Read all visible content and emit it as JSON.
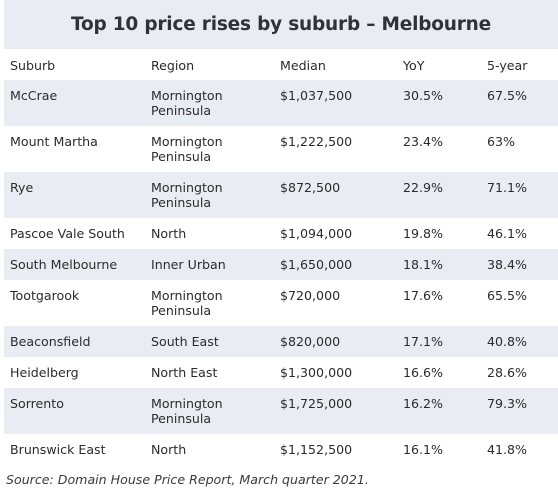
{
  "title": "Top 10 price rises by suburb – Melbourne",
  "columns": [
    "Suburb",
    "Region",
    "Median",
    "YoY",
    "5-year"
  ],
  "rows": [
    {
      "suburb": "McCrae",
      "region": "Mornington Peninsula",
      "median": "$1,037,500",
      "yoy": "30.5%",
      "five_year": "67.5%"
    },
    {
      "suburb": "Mount Martha",
      "region": "Mornington Peninsula",
      "median": "$1,222,500",
      "yoy": "23.4%",
      "five_year": "63%"
    },
    {
      "suburb": "Rye",
      "region": "Mornington Peninsula",
      "median": "$872,500",
      "yoy": "22.9%",
      "five_year": "71.1%"
    },
    {
      "suburb": "Pascoe Vale South",
      "region": "North",
      "median": "$1,094,000",
      "yoy": "19.8%",
      "five_year": "46.1%"
    },
    {
      "suburb": "South Melbourne",
      "region": "Inner Urban",
      "median": "$1,650,000",
      "yoy": "18.1%",
      "five_year": "38.4%"
    },
    {
      "suburb": "Tootgarook",
      "region": "Mornington Peninsula",
      "median": "$720,000",
      "yoy": "17.6%",
      "five_year": "65.5%"
    },
    {
      "suburb": "Beaconsfield",
      "region": "South East",
      "median": "$820,000",
      "yoy": "17.1%",
      "five_year": "40.8%"
    },
    {
      "suburb": "Heidelberg",
      "region": "North East",
      "median": "$1,300,000",
      "yoy": "16.6%",
      "five_year": "28.6%"
    },
    {
      "suburb": "Sorrento",
      "region": "Mornington Peninsula",
      "median": "$1,725,000",
      "yoy": "16.2%",
      "five_year": "79.3%"
    },
    {
      "suburb": "Brunswick East",
      "region": "North",
      "median": "$1,152,500",
      "yoy": "16.1%",
      "five_year": "41.8%"
    }
  ],
  "source": "Source: Domain House Price Report, March quarter 2021."
}
